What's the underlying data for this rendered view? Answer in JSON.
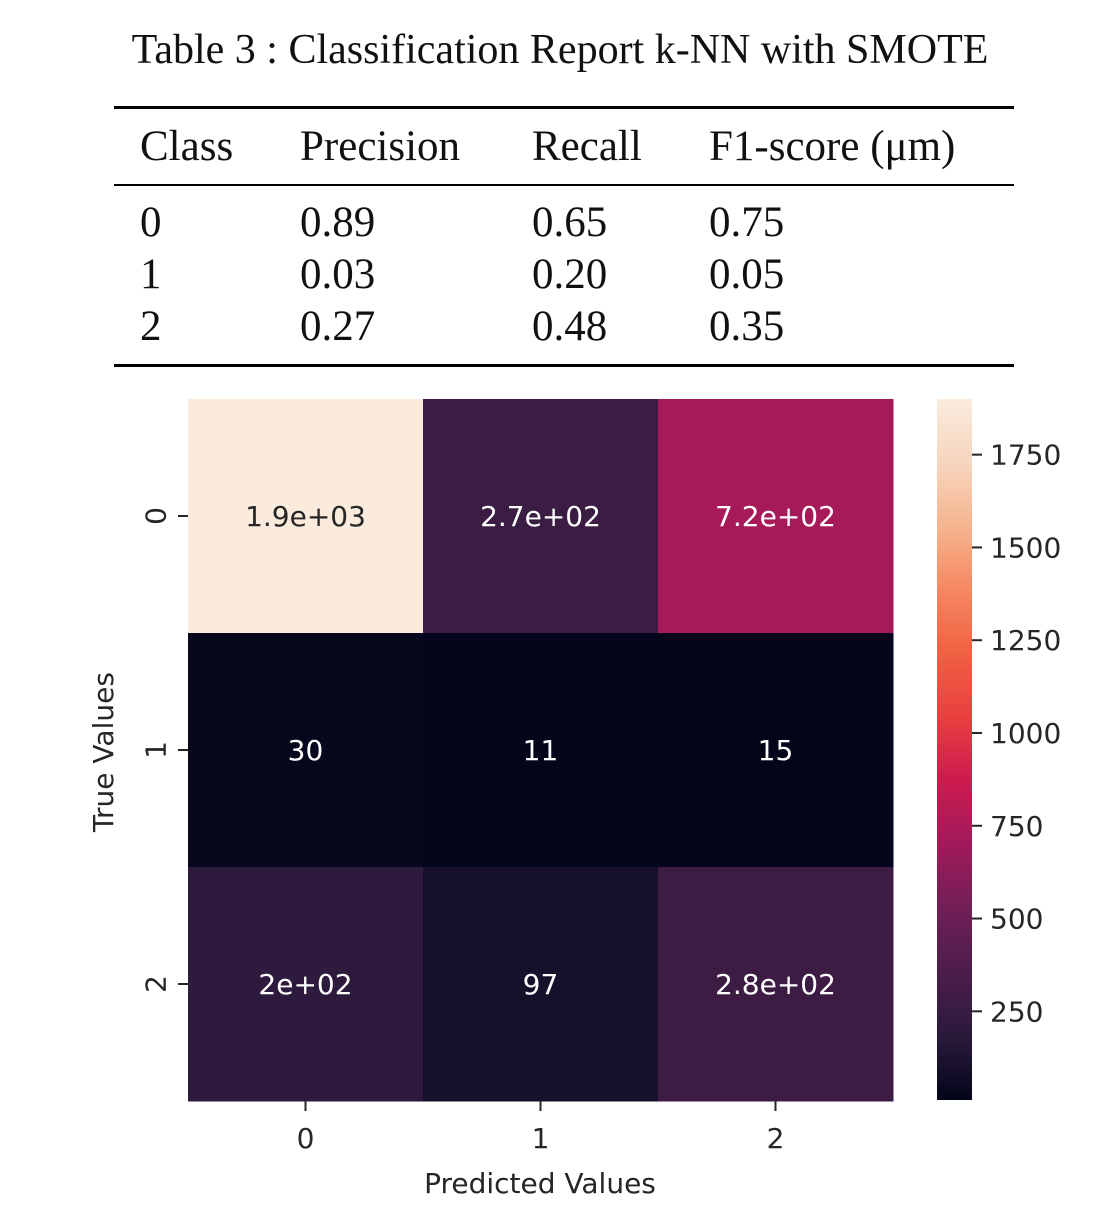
{
  "caption": "Table 3 : Classification Report k-NN with SMOTE",
  "report": {
    "headers": [
      "Class",
      "Precision",
      "Recall",
      "F1-score (μm)"
    ],
    "rows": [
      [
        "0",
        "0.89",
        "0.65",
        "0.75"
      ],
      [
        "1",
        "0.03",
        "0.20",
        "0.05"
      ],
      [
        "2",
        "0.27",
        "0.48",
        "0.35"
      ]
    ]
  },
  "chart_data": {
    "type": "heatmap",
    "xlabel": "Predicted Values",
    "ylabel": "True Values",
    "x_categories": [
      "0",
      "1",
      "2"
    ],
    "y_categories": [
      "0",
      "1",
      "2"
    ],
    "values": [
      [
        1900,
        270,
        720
      ],
      [
        30,
        11,
        15
      ],
      [
        200,
        97,
        280
      ]
    ],
    "annotations": [
      [
        "1.9e+03",
        "2.7e+02",
        "7.2e+02"
      ],
      [
        "30",
        "11",
        "15"
      ],
      [
        "2e+02",
        "97",
        "2.8e+02"
      ]
    ],
    "colorbar": {
      "min": 11,
      "max": 1900,
      "ticks": [
        250,
        500,
        750,
        1000,
        1250,
        1500,
        1750
      ],
      "colormap": "rocket",
      "stops": [
        "#03051a",
        "#2a1a3b",
        "#4c1d4b",
        "#711f56",
        "#a11a5b",
        "#cb1b4f",
        "#e83f3f",
        "#f06043",
        "#f58860",
        "#f6b48e",
        "#f6d6be",
        "#faebdd"
      ]
    },
    "annotation_color_dark": "#ffffff",
    "annotation_color_light": "#262626"
  }
}
